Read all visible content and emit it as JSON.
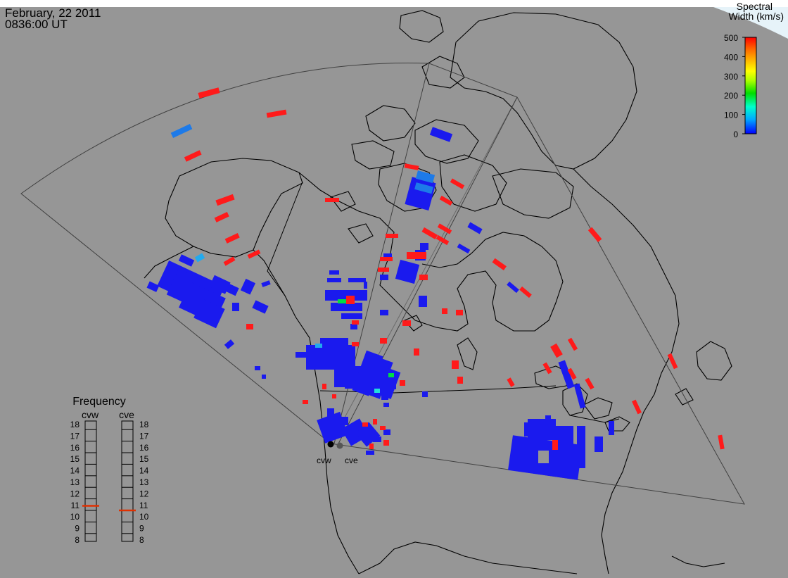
{
  "header": {
    "date": "February, 22 2011",
    "time": "0836:00 UT"
  },
  "colorbar": {
    "title_line1": "Spectral",
    "title_line2": "Width (km/s)",
    "ticks": [
      "500",
      "400",
      "300",
      "200",
      "100",
      "0"
    ],
    "values": [
      500,
      400,
      300,
      200,
      100,
      0
    ],
    "range": [
      0,
      500
    ],
    "gradient": [
      "#0000ff",
      "#00aaff",
      "#00ffcc",
      "#00dd00",
      "#aaff00",
      "#ffff00",
      "#ffaa00",
      "#ff6600",
      "#ff0000"
    ]
  },
  "frequency_panel": {
    "title": "Frequency",
    "radars": [
      {
        "label": "cvw",
        "value": 10.9
      },
      {
        "label": "cve",
        "value": 10.5
      }
    ],
    "scale": [
      "18",
      "17",
      "16",
      "15",
      "14",
      "13",
      "12",
      "11",
      "10",
      "9",
      "8"
    ],
    "marker_color": "#e03000"
  },
  "radar_sites": [
    {
      "label": "cvw"
    },
    {
      "label": "cve"
    }
  ],
  "colors": {
    "background": "#969696",
    "land_outline": "#000000",
    "fov_outline": "#404040",
    "snow_cap": "#e6f3f9",
    "low_width": "#1a1aee",
    "high_width": "#ff1a1a"
  }
}
